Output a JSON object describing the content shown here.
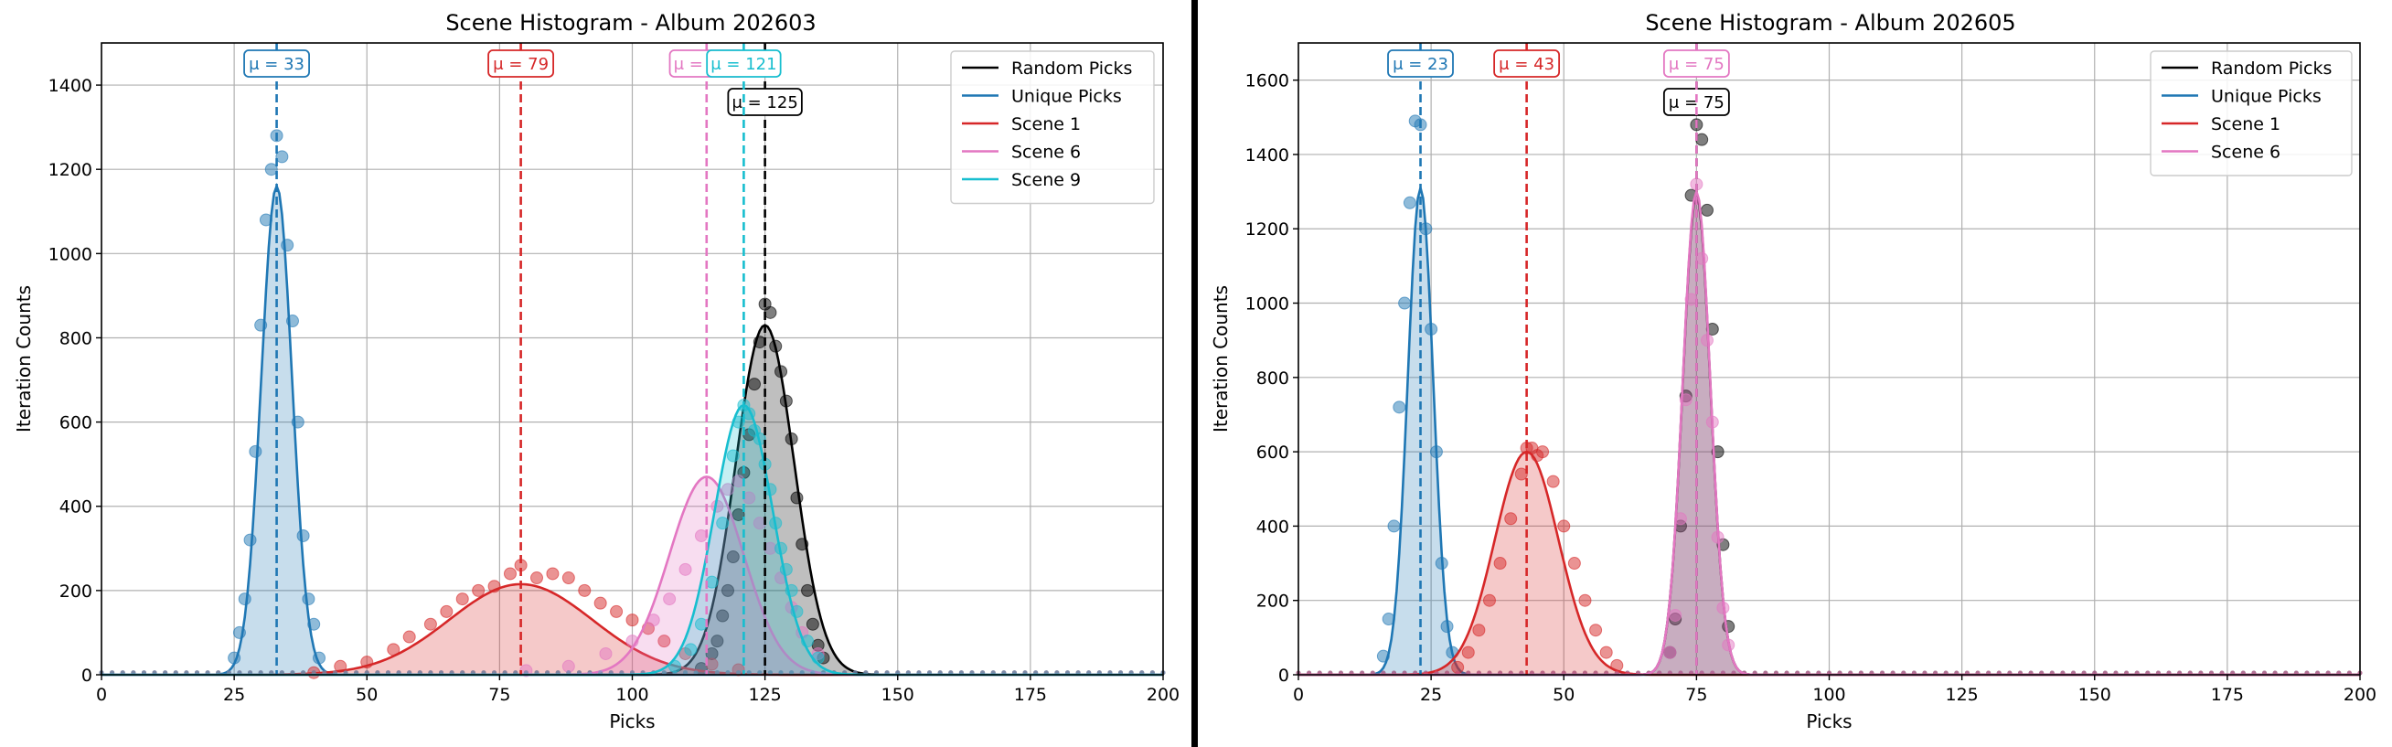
{
  "figure": {
    "panels": [
      {
        "title": "Scene Histogram - Album 202603"
      },
      {
        "title": "Scene Histogram - Album 202605"
      }
    ]
  },
  "chart_data": [
    {
      "type": "line",
      "title": "Scene Histogram - Album 202603",
      "xlabel": "Picks",
      "ylabel": "Iteration Counts",
      "xlim": [
        0,
        200
      ],
      "ylim": [
        0,
        1500
      ],
      "xticks": [
        0,
        25,
        50,
        75,
        100,
        125,
        150,
        175,
        200
      ],
      "yticks": [
        0,
        200,
        400,
        600,
        800,
        1000,
        1200,
        1400
      ],
      "grid": true,
      "legend_position": "top-right",
      "series": [
        {
          "name": "Random Picks",
          "color": "#000000",
          "mean": 125,
          "mu_label": "μ = 125",
          "peak": 830,
          "sigma": 5.5,
          "points": [
            [
              113,
              15
            ],
            [
              115,
              50
            ],
            [
              116,
              80
            ],
            [
              117,
              140
            ],
            [
              118,
              200
            ],
            [
              119,
              280
            ],
            [
              120,
              380
            ],
            [
              121,
              480
            ],
            [
              122,
              570
            ],
            [
              123,
              690
            ],
            [
              124,
              790
            ],
            [
              125,
              880
            ],
            [
              126,
              860
            ],
            [
              127,
              780
            ],
            [
              128,
              720
            ],
            [
              129,
              650
            ],
            [
              130,
              560
            ],
            [
              131,
              420
            ],
            [
              132,
              310
            ],
            [
              133,
              200
            ],
            [
              134,
              120
            ],
            [
              135,
              70
            ],
            [
              136,
              40
            ]
          ]
        },
        {
          "name": "Unique Picks",
          "color": "#1f77b4",
          "mean": 33,
          "mu_label": "μ = 33",
          "peak": 1160,
          "sigma": 2.9,
          "points": [
            [
              25,
              40
            ],
            [
              26,
              100
            ],
            [
              27,
              180
            ],
            [
              28,
              320
            ],
            [
              29,
              530
            ],
            [
              30,
              830
            ],
            [
              31,
              1080
            ],
            [
              32,
              1200
            ],
            [
              33,
              1280
            ],
            [
              34,
              1230
            ],
            [
              35,
              1020
            ],
            [
              36,
              840
            ],
            [
              37,
              600
            ],
            [
              38,
              330
            ],
            [
              39,
              180
            ],
            [
              40,
              120
            ],
            [
              41,
              40
            ]
          ]
        },
        {
          "name": "Scene 1",
          "color": "#d62728",
          "mean": 79,
          "mu_label": "μ = 79",
          "peak": 215,
          "sigma": 13.5,
          "points": [
            [
              40,
              5
            ],
            [
              45,
              20
            ],
            [
              50,
              30
            ],
            [
              55,
              60
            ],
            [
              58,
              90
            ],
            [
              62,
              120
            ],
            [
              65,
              150
            ],
            [
              68,
              180
            ],
            [
              71,
              200
            ],
            [
              74,
              210
            ],
            [
              77,
              240
            ],
            [
              79,
              260
            ],
            [
              82,
              230
            ],
            [
              85,
              240
            ],
            [
              88,
              230
            ],
            [
              91,
              200
            ],
            [
              94,
              170
            ],
            [
              97,
              150
            ],
            [
              100,
              130
            ],
            [
              103,
              110
            ],
            [
              106,
              80
            ],
            [
              110,
              50
            ],
            [
              115,
              25
            ],
            [
              120,
              12
            ]
          ]
        },
        {
          "name": "Scene 6",
          "color": "#e377c2",
          "mean": 114,
          "mu_label": "μ = 114",
          "peak": 470,
          "sigma": 7,
          "points": [
            [
              80,
              10
            ],
            [
              88,
              20
            ],
            [
              95,
              50
            ],
            [
              100,
              80
            ],
            [
              104,
              130
            ],
            [
              107,
              180
            ],
            [
              110,
              250
            ],
            [
              113,
              330
            ],
            [
              116,
              400
            ],
            [
              118,
              440
            ],
            [
              120,
              460
            ],
            [
              122,
              420
            ],
            [
              124,
              360
            ],
            [
              126,
              300
            ],
            [
              128,
              230
            ],
            [
              130,
              160
            ],
            [
              132,
              100
            ],
            [
              135,
              50
            ]
          ]
        },
        {
          "name": "Scene 9",
          "color": "#17becf",
          "mean": 121,
          "mu_label": "μ = 121",
          "peak": 640,
          "sigma": 5.5,
          "points": [
            [
              108,
              20
            ],
            [
              111,
              60
            ],
            [
              113,
              120
            ],
            [
              115,
              220
            ],
            [
              117,
              360
            ],
            [
              119,
              520
            ],
            [
              120,
              600
            ],
            [
              121,
              640
            ],
            [
              122,
              620
            ],
            [
              123,
              580
            ],
            [
              124,
              560
            ],
            [
              125,
              500
            ],
            [
              126,
              440
            ],
            [
              127,
              360
            ],
            [
              128,
              300
            ],
            [
              129,
              250
            ],
            [
              130,
              200
            ],
            [
              131,
              150
            ],
            [
              133,
              80
            ],
            [
              135,
              40
            ]
          ]
        }
      ]
    },
    {
      "type": "line",
      "title": "Scene Histogram - Album 202605",
      "xlabel": "Picks",
      "ylabel": "Iteration Counts",
      "xlim": [
        0,
        200
      ],
      "ylim": [
        0,
        1700
      ],
      "xticks": [
        0,
        25,
        50,
        75,
        100,
        125,
        150,
        175,
        200
      ],
      "yticks": [
        0,
        200,
        400,
        600,
        800,
        1000,
        1200,
        1400,
        1600
      ],
      "grid": true,
      "legend_position": "top-right",
      "series": [
        {
          "name": "Random Picks",
          "color": "#000000",
          "mean": 75,
          "mu_label": "μ = 75",
          "peak": 1290,
          "sigma": 2.6,
          "points": [
            [
              70,
              60
            ],
            [
              71,
              150
            ],
            [
              72,
              400
            ],
            [
              73,
              750
            ],
            [
              74,
              1290
            ],
            [
              75,
              1480
            ],
            [
              76,
              1440
            ],
            [
              77,
              1250
            ],
            [
              78,
              930
            ],
            [
              79,
              600
            ],
            [
              80,
              350
            ],
            [
              81,
              130
            ]
          ]
        },
        {
          "name": "Unique Picks",
          "color": "#1f77b4",
          "mean": 23,
          "mu_label": "μ = 23",
          "peak": 1310,
          "sigma": 2.4,
          "points": [
            [
              16,
              50
            ],
            [
              17,
              150
            ],
            [
              18,
              400
            ],
            [
              19,
              720
            ],
            [
              20,
              1000
            ],
            [
              21,
              1270
            ],
            [
              22,
              1490
            ],
            [
              23,
              1480
            ],
            [
              24,
              1200
            ],
            [
              25,
              930
            ],
            [
              26,
              600
            ],
            [
              27,
              300
            ],
            [
              28,
              130
            ],
            [
              29,
              60
            ]
          ]
        },
        {
          "name": "Scene 1",
          "color": "#d62728",
          "mean": 43,
          "mu_label": "μ = 43",
          "peak": 600,
          "sigma": 6,
          "points": [
            [
              30,
              20
            ],
            [
              32,
              60
            ],
            [
              34,
              120
            ],
            [
              36,
              200
            ],
            [
              38,
              300
            ],
            [
              40,
              420
            ],
            [
              42,
              540
            ],
            [
              43,
              610
            ],
            [
              44,
              610
            ],
            [
              45,
              590
            ],
            [
              46,
              600
            ],
            [
              48,
              520
            ],
            [
              50,
              400
            ],
            [
              52,
              300
            ],
            [
              54,
              200
            ],
            [
              56,
              120
            ],
            [
              58,
              60
            ],
            [
              60,
              25
            ]
          ]
        },
        {
          "name": "Scene 6",
          "color": "#e377c2",
          "mean": 75,
          "mu_label": "μ = 75",
          "peak": 1300,
          "sigma": 2.6,
          "points": [
            [
              70,
              60
            ],
            [
              71,
              160
            ],
            [
              72,
              420
            ],
            [
              73,
              740
            ],
            [
              74,
              1010
            ],
            [
              75,
              1320
            ],
            [
              76,
              1120
            ],
            [
              77,
              900
            ],
            [
              78,
              680
            ],
            [
              79,
              370
            ],
            [
              80,
              180
            ],
            [
              81,
              80
            ]
          ]
        }
      ]
    }
  ]
}
